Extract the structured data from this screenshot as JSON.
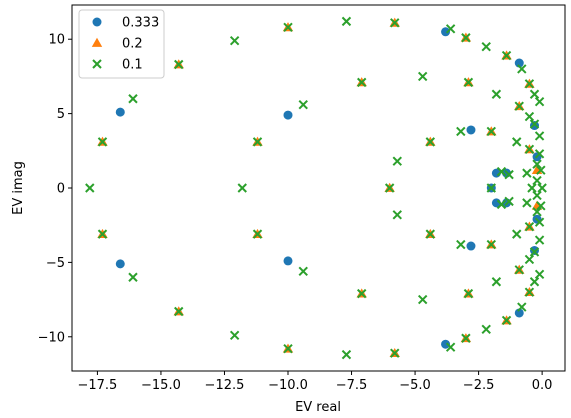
{
  "chart_data": {
    "type": "scatter",
    "xlabel": "EV real",
    "ylabel": "EV imag",
    "xlim": [
      -18.5,
      0.9
    ],
    "ylim": [
      -12.3,
      12.3
    ],
    "xticks": [
      -17.5,
      -15.0,
      -12.5,
      -10.0,
      -7.5,
      -5.0,
      -2.5,
      0.0
    ],
    "xtick_labels": [
      "−17.5",
      "−15.0",
      "−12.5",
      "−10.0",
      "−7.5",
      "−5.0",
      "−2.5",
      "0.0"
    ],
    "yticks": [
      -10,
      -5,
      0,
      5,
      10
    ],
    "ytick_labels": [
      "−10",
      "−5",
      "0",
      "5",
      "10"
    ],
    "grid": false,
    "legend_position": "top-left",
    "series": [
      {
        "name": "0.333",
        "marker": "circle",
        "color": "#1f77b4",
        "points": [
          [
            -16.6,
            5.1
          ],
          [
            -16.6,
            -5.1
          ],
          [
            -10.0,
            4.9
          ],
          [
            -10.0,
            -4.9
          ],
          [
            -3.8,
            10.5
          ],
          [
            -3.8,
            -10.5
          ],
          [
            -2.8,
            3.9
          ],
          [
            -2.8,
            -3.9
          ],
          [
            -1.8,
            1.0
          ],
          [
            -1.8,
            -1.0
          ],
          [
            -2.0,
            0.0
          ],
          [
            -1.4,
            1.0
          ],
          [
            -1.4,
            -1.0
          ],
          [
            -0.9,
            8.4
          ],
          [
            -0.9,
            -8.4
          ],
          [
            -0.3,
            4.2
          ],
          [
            -0.3,
            -4.2
          ],
          [
            -0.2,
            2.1
          ],
          [
            -0.2,
            -2.1
          ]
        ]
      },
      {
        "name": "0.2",
        "marker": "triangle",
        "color": "#ff7f0e",
        "points": [
          [
            -17.3,
            3.1
          ],
          [
            -17.3,
            -3.1
          ],
          [
            -14.3,
            8.3
          ],
          [
            -14.3,
            -8.3
          ],
          [
            -11.2,
            3.1
          ],
          [
            -11.2,
            -3.1
          ],
          [
            -10.0,
            10.8
          ],
          [
            -10.0,
            -10.8
          ],
          [
            -7.1,
            7.1
          ],
          [
            -7.1,
            -7.1
          ],
          [
            -6.0,
            0.0
          ],
          [
            -5.8,
            11.1
          ],
          [
            -5.8,
            -11.1
          ],
          [
            -4.4,
            3.1
          ],
          [
            -4.4,
            -3.1
          ],
          [
            -3.0,
            10.1
          ],
          [
            -3.0,
            -10.1
          ],
          [
            -2.9,
            7.1
          ],
          [
            -2.9,
            -7.1
          ],
          [
            -2.0,
            3.8
          ],
          [
            -2.0,
            -3.8
          ],
          [
            -1.4,
            8.9
          ],
          [
            -1.4,
            -8.9
          ],
          [
            -0.9,
            5.5
          ],
          [
            -0.9,
            -5.5
          ],
          [
            -0.5,
            7.0
          ],
          [
            -0.5,
            -7.0
          ],
          [
            -0.5,
            2.6
          ],
          [
            -0.5,
            -2.6
          ],
          [
            -0.2,
            1.2
          ],
          [
            -0.2,
            -1.2
          ]
        ]
      },
      {
        "name": "0.1",
        "marker": "x",
        "color": "#2ca02c",
        "points": [
          [
            -17.8,
            0.0
          ],
          [
            -17.3,
            3.1
          ],
          [
            -17.3,
            -3.1
          ],
          [
            -16.1,
            6.0
          ],
          [
            -16.1,
            -6.0
          ],
          [
            -14.3,
            8.3
          ],
          [
            -14.3,
            -8.3
          ],
          [
            -12.1,
            9.9
          ],
          [
            -12.1,
            -9.9
          ],
          [
            -11.2,
            3.1
          ],
          [
            -11.2,
            -3.1
          ],
          [
            -11.8,
            0.0
          ],
          [
            -10.0,
            10.8
          ],
          [
            -10.0,
            -10.8
          ],
          [
            -9.4,
            5.6
          ],
          [
            -9.4,
            -5.6
          ],
          [
            -7.7,
            11.2
          ],
          [
            -7.7,
            -11.2
          ],
          [
            -7.1,
            7.1
          ],
          [
            -7.1,
            -7.1
          ],
          [
            -6.0,
            0.0
          ],
          [
            -5.7,
            1.8
          ],
          [
            -5.7,
            -1.8
          ],
          [
            -5.8,
            11.1
          ],
          [
            -5.8,
            -11.1
          ],
          [
            -4.7,
            7.5
          ],
          [
            -4.7,
            -7.5
          ],
          [
            -4.4,
            3.1
          ],
          [
            -4.4,
            -3.1
          ],
          [
            -3.6,
            10.7
          ],
          [
            -3.6,
            -10.7
          ],
          [
            -3.0,
            10.1
          ],
          [
            -3.0,
            -10.1
          ],
          [
            -2.9,
            7.1
          ],
          [
            -2.9,
            -7.1
          ],
          [
            -3.2,
            3.8
          ],
          [
            -3.2,
            -3.8
          ],
          [
            -2.2,
            9.5
          ],
          [
            -2.2,
            -9.5
          ],
          [
            -2.0,
            3.8
          ],
          [
            -2.0,
            -3.8
          ],
          [
            -2.0,
            0.0
          ],
          [
            -1.8,
            6.3
          ],
          [
            -1.8,
            -6.3
          ],
          [
            -1.6,
            1.1
          ],
          [
            -1.6,
            -1.1
          ],
          [
            -1.3,
            0.9
          ],
          [
            -1.3,
            -0.9
          ],
          [
            -1.4,
            8.9
          ],
          [
            -1.4,
            -8.9
          ],
          [
            -1.0,
            3.1
          ],
          [
            -1.0,
            -3.1
          ],
          [
            -0.9,
            5.5
          ],
          [
            -0.9,
            -5.5
          ],
          [
            -0.8,
            8.0
          ],
          [
            -0.8,
            -8.0
          ],
          [
            -0.6,
            1.0
          ],
          [
            -0.6,
            -1.0
          ],
          [
            -0.5,
            7.0
          ],
          [
            -0.5,
            -7.0
          ],
          [
            -0.5,
            4.8
          ],
          [
            -0.5,
            -4.8
          ],
          [
            -0.5,
            2.6
          ],
          [
            -0.5,
            -2.6
          ],
          [
            -0.4,
            0.0
          ],
          [
            -0.3,
            6.3
          ],
          [
            -0.3,
            -6.3
          ],
          [
            -0.3,
            4.3
          ],
          [
            -0.3,
            -4.3
          ],
          [
            -0.2,
            1.6
          ],
          [
            -0.2,
            -1.6
          ],
          [
            -0.2,
            0.5
          ],
          [
            -0.2,
            -0.5
          ],
          [
            -0.1,
            5.8
          ],
          [
            -0.1,
            -5.8
          ],
          [
            -0.1,
            3.5
          ],
          [
            -0.1,
            -3.5
          ],
          [
            -0.1,
            2.3
          ],
          [
            -0.1,
            -2.3
          ],
          [
            -0.05,
            1.2
          ],
          [
            -0.05,
            -1.2
          ],
          [
            0.0,
            0.0
          ]
        ]
      }
    ]
  }
}
